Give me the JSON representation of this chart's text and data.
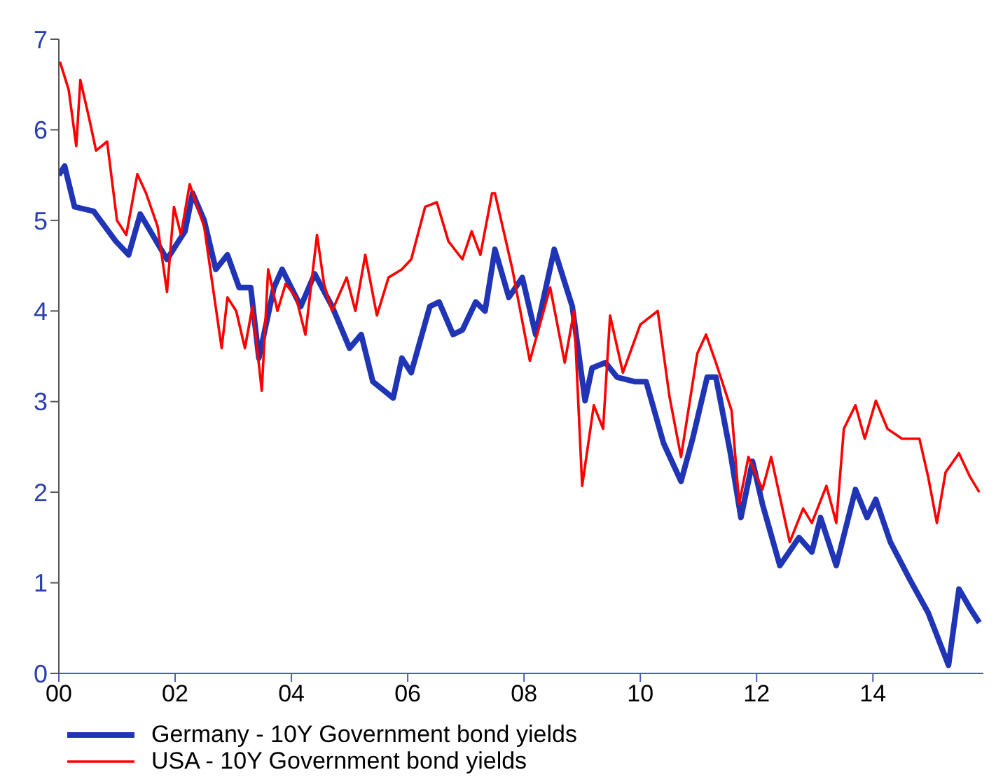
{
  "chart_data": {
    "type": "line",
    "xlim": [
      0,
      15.9
    ],
    "xticks": [
      {
        "value": 0,
        "label": "00"
      },
      {
        "value": 2,
        "label": "02"
      },
      {
        "value": 4,
        "label": "04"
      },
      {
        "value": 6,
        "label": "06"
      },
      {
        "value": 8,
        "label": "08"
      },
      {
        "value": 10,
        "label": "10"
      },
      {
        "value": 12,
        "label": "12"
      },
      {
        "value": 14,
        "label": "14"
      }
    ],
    "ylim": [
      0,
      7
    ],
    "yticks": [
      0,
      1,
      2,
      3,
      4,
      5,
      6,
      7
    ],
    "grid": false,
    "legend": "bottom left",
    "marker": "none",
    "line_style": "solid",
    "series": [
      {
        "name": "Germany - 10Y Government bond yields",
        "color": "#1f35b5",
        "x": [
          0,
          0.1,
          0.27,
          0.6,
          0.98,
          1.2,
          1.4,
          1.86,
          2.17,
          2.3,
          2.5,
          2.7,
          2.9,
          3.1,
          3.3,
          3.44,
          3.7,
          3.84,
          4.16,
          4.4,
          4.7,
          5.0,
          5.2,
          5.4,
          5.75,
          5.9,
          6.06,
          6.38,
          6.54,
          6.78,
          6.94,
          7.17,
          7.33,
          7.5,
          7.74,
          7.97,
          8.2,
          8.52,
          8.83,
          9.05,
          9.17,
          9.4,
          9.6,
          9.9,
          10.1,
          10.4,
          10.7,
          10.9,
          11.15,
          11.3,
          11.55,
          11.73,
          11.93,
          12.1,
          12.4,
          12.73,
          12.95,
          13.1,
          13.37,
          13.7,
          13.9,
          14.05,
          14.3,
          14.64,
          14.95,
          15.3,
          15.48,
          15.67,
          15.83
        ],
        "values": [
          5.5,
          5.6,
          5.15,
          5.1,
          4.77,
          4.62,
          5.07,
          4.57,
          4.88,
          5.3,
          5.0,
          4.46,
          4.62,
          4.26,
          4.26,
          3.48,
          4.26,
          4.46,
          4.05,
          4.41,
          4.05,
          3.59,
          3.74,
          3.22,
          3.04,
          3.48,
          3.32,
          4.05,
          4.1,
          3.74,
          3.79,
          4.1,
          4.0,
          4.68,
          4.15,
          4.37,
          3.74,
          4.68,
          4.05,
          3.01,
          3.37,
          3.43,
          3.27,
          3.22,
          3.22,
          2.54,
          2.12,
          2.59,
          3.27,
          3.27,
          2.43,
          1.72,
          2.34,
          1.87,
          1.19,
          1.5,
          1.34,
          1.72,
          1.19,
          2.03,
          1.72,
          1.92,
          1.45,
          1.03,
          0.67,
          0.09,
          0.93,
          0.72,
          0.56
        ]
      },
      {
        "name": "USA - 10Y Government bond yields",
        "color": "#ff0000",
        "x": [
          0.02,
          0.17,
          0.3,
          0.37,
          0.52,
          0.64,
          0.83,
          1.0,
          1.16,
          1.35,
          1.5,
          1.7,
          1.86,
          1.98,
          2.1,
          2.25,
          2.5,
          2.65,
          2.8,
          2.9,
          3.05,
          3.2,
          3.33,
          3.49,
          3.6,
          3.76,
          3.9,
          4.08,
          4.24,
          4.44,
          4.56,
          4.7,
          4.95,
          5.1,
          5.27,
          5.47,
          5.67,
          5.9,
          6.06,
          6.3,
          6.5,
          6.7,
          6.94,
          7.1,
          7.25,
          7.45,
          7.5,
          7.8,
          8.1,
          8.45,
          8.7,
          8.86,
          9.0,
          9.2,
          9.36,
          9.48,
          9.7,
          10.0,
          10.3,
          10.5,
          10.7,
          10.98,
          11.13,
          11.3,
          11.57,
          11.7,
          11.86,
          12.1,
          12.25,
          12.57,
          12.8,
          12.95,
          13.2,
          13.37,
          13.5,
          13.7,
          13.86,
          14.05,
          14.25,
          14.5,
          14.8,
          14.95,
          15.1,
          15.25,
          15.48,
          15.67,
          15.83
        ],
        "values": [
          6.75,
          6.44,
          5.82,
          6.55,
          6.13,
          5.77,
          5.87,
          5.0,
          4.84,
          5.51,
          5.3,
          4.93,
          4.21,
          5.15,
          4.84,
          5.4,
          4.93,
          4.26,
          3.59,
          4.15,
          4.0,
          3.59,
          4.05,
          3.12,
          4.46,
          4.0,
          4.3,
          4.15,
          3.74,
          4.84,
          4.3,
          4.0,
          4.37,
          4.0,
          4.62,
          3.95,
          4.37,
          4.46,
          4.57,
          5.15,
          5.2,
          4.77,
          4.57,
          4.88,
          4.62,
          5.3,
          5.3,
          4.46,
          3.45,
          4.26,
          3.43,
          4.0,
          2.07,
          2.96,
          2.7,
          3.95,
          3.32,
          3.85,
          4.0,
          3.06,
          2.39,
          3.53,
          3.74,
          3.43,
          2.9,
          1.87,
          2.39,
          2.03,
          2.39,
          1.45,
          1.82,
          1.66,
          2.07,
          1.66,
          2.7,
          2.96,
          2.59,
          3.01,
          2.7,
          2.59,
          2.59,
          2.17,
          1.66,
          2.22,
          2.43,
          2.17,
          2.0
        ]
      }
    ]
  }
}
